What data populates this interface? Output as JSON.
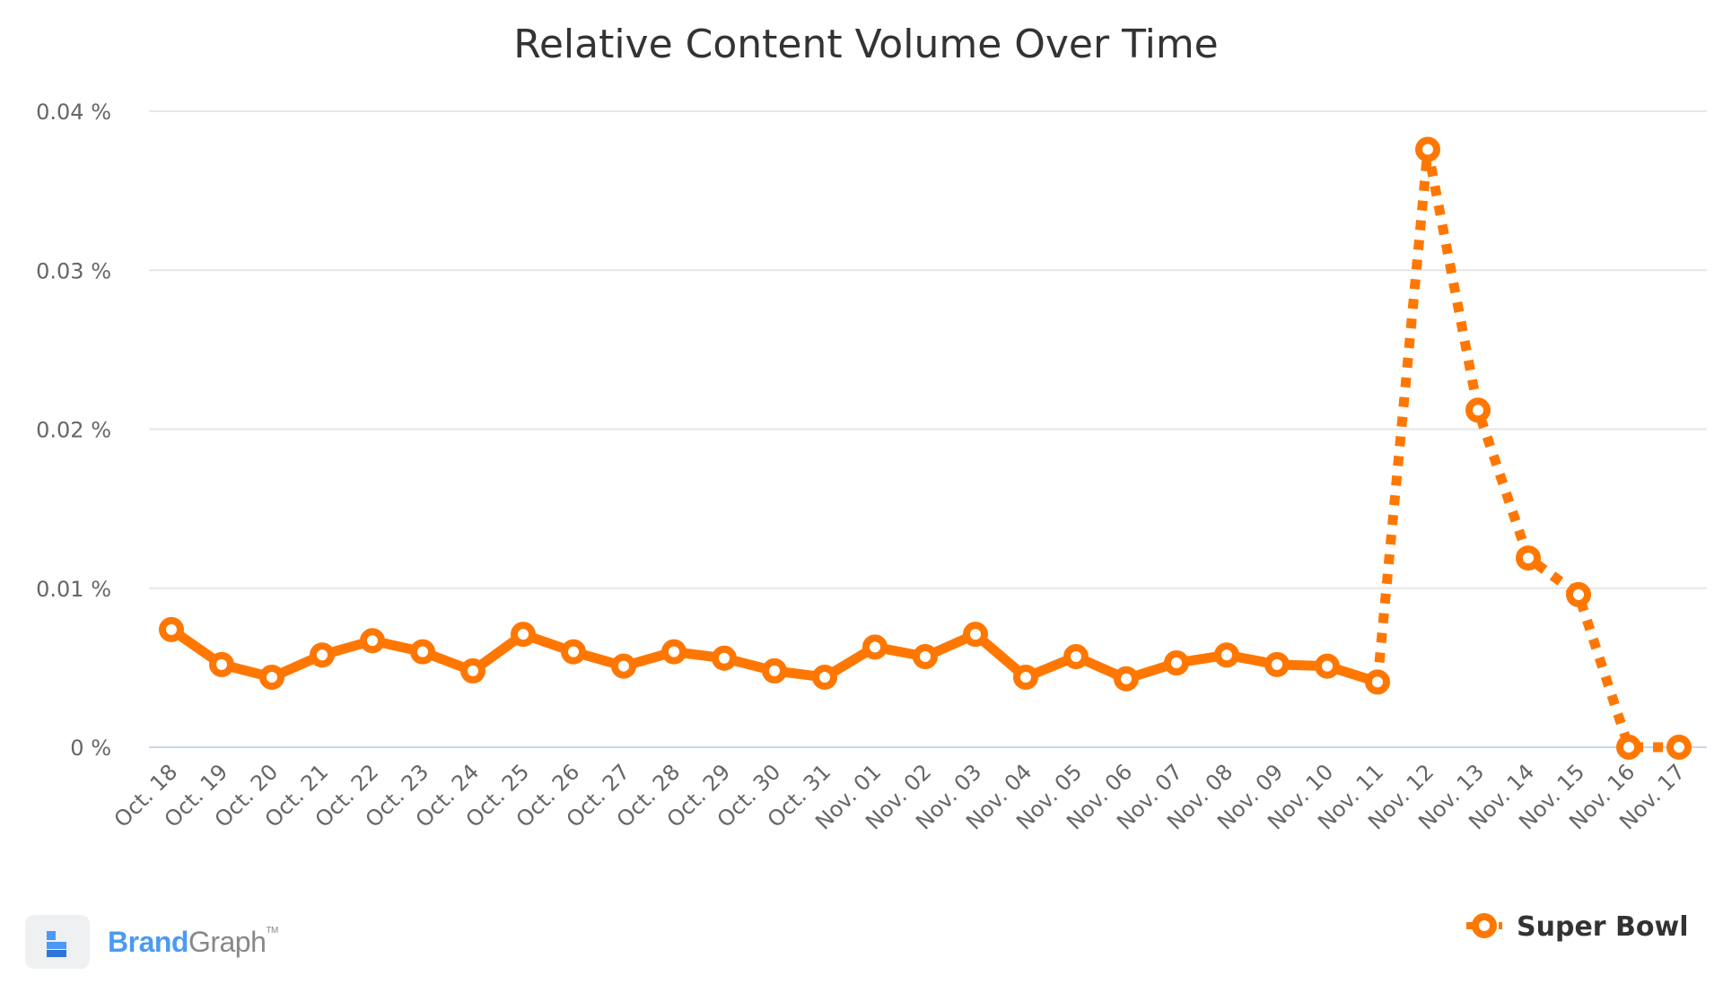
{
  "chart_data": {
    "type": "line",
    "title": "Relative Content Volume Over Time",
    "xlabel": "",
    "ylabel": "",
    "ylim": [
      0,
      0.04
    ],
    "y_ticks": [
      "0 %",
      "0.01 %",
      "0.02 %",
      "0.03 %",
      "0.04 %"
    ],
    "y_tick_values": [
      0,
      0.01,
      0.02,
      0.03,
      0.04
    ],
    "grid": true,
    "legend": "bottom-right",
    "categories": [
      "Oct. 18",
      "Oct. 19",
      "Oct. 20",
      "Oct. 21",
      "Oct. 22",
      "Oct. 23",
      "Oct. 24",
      "Oct. 25",
      "Oct. 26",
      "Oct. 27",
      "Oct. 28",
      "Oct. 29",
      "Oct. 30",
      "Oct. 31",
      "Nov. 01",
      "Nov. 02",
      "Nov. 03",
      "Nov. 04",
      "Nov. 05",
      "Nov. 06",
      "Nov. 07",
      "Nov. 08",
      "Nov. 09",
      "Nov. 10",
      "Nov. 11",
      "Nov. 12",
      "Nov. 13",
      "Nov. 14",
      "Nov. 15",
      "Nov. 16",
      "Nov. 17"
    ],
    "series": [
      {
        "name": "Super Bowl",
        "color": "#ff7700",
        "dashed_from_index": 24,
        "values": [
          0.0074,
          0.0052,
          0.0044,
          0.0058,
          0.0067,
          0.006,
          0.0048,
          0.0071,
          0.006,
          0.0051,
          0.006,
          0.0056,
          0.0048,
          0.0044,
          0.0063,
          0.0057,
          0.0071,
          0.0044,
          0.0057,
          0.0043,
          0.0053,
          0.0058,
          0.0052,
          0.0051,
          0.0041,
          0.0376,
          0.0212,
          0.0119,
          0.0096,
          0.0,
          0.0
        ]
      }
    ]
  },
  "branding": {
    "brand": "Brand",
    "graph": "Graph",
    "tm": "TM"
  }
}
